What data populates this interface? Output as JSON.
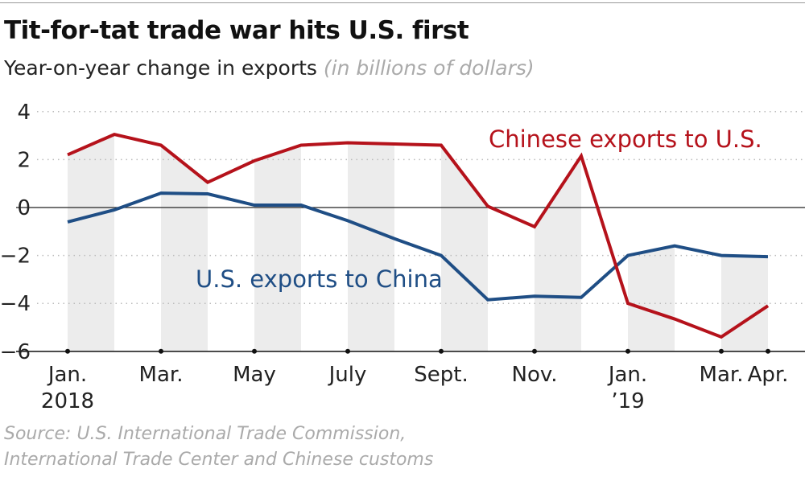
{
  "header": {
    "title": "Tit-for-tat trade war hits U.S. first",
    "subtitle": "Year-on-year change in exports",
    "unit": "(in billions of dollars)"
  },
  "source": {
    "line1": "Source: U.S. International Trade Commission,",
    "line2": "International Trade Center and Chinese customs"
  },
  "chart_data": {
    "type": "line",
    "title": "Tit-for-tat trade war hits U.S. first",
    "ylabel": "",
    "ylim": [
      -6,
      4
    ],
    "yticks": [
      "4",
      "2",
      "0",
      "−2",
      "−4",
      "−6"
    ],
    "ytick_values": [
      4,
      2,
      0,
      -2,
      -4,
      -6
    ],
    "grid": true,
    "x": [
      "2018-01",
      "2018-02",
      "2018-03",
      "2018-04",
      "2018-05",
      "2018-06",
      "2018-07",
      "2018-08",
      "2018-09",
      "2018-10",
      "2018-11",
      "2018-12",
      "2019-01",
      "2019-02",
      "2019-03",
      "2019-04"
    ],
    "xtick_labels": [
      {
        "i": 0,
        "l1": "Jan.",
        "l2": "2018"
      },
      {
        "i": 2,
        "l1": "Mar.",
        "l2": ""
      },
      {
        "i": 4,
        "l1": "May",
        "l2": ""
      },
      {
        "i": 6,
        "l1": "July",
        "l2": ""
      },
      {
        "i": 8,
        "l1": "Sept.",
        "l2": ""
      },
      {
        "i": 10,
        "l1": "Nov.",
        "l2": ""
      },
      {
        "i": 12,
        "l1": "Jan.",
        "l2": "’19"
      },
      {
        "i": 14,
        "l1": "Mar.",
        "l2": ""
      },
      {
        "i": 15,
        "l1": "Apr.",
        "l2": ""
      }
    ],
    "series": [
      {
        "name": "Chinese exports to U.S.",
        "color": "#b5121b",
        "values": [
          2.2,
          3.05,
          2.6,
          1.05,
          1.95,
          2.6,
          2.7,
          2.65,
          2.6,
          0.05,
          -0.8,
          2.15,
          -4.0,
          -4.65,
          -5.4,
          -4.1
        ]
      },
      {
        "name": "U.S. exports to China",
        "color": "#1f4e85",
        "values": [
          -0.6,
          -0.1,
          0.6,
          0.57,
          0.1,
          0.1,
          -0.55,
          -1.3,
          -2.0,
          -3.85,
          -3.7,
          -3.75,
          -2.0,
          -1.6,
          -2.0,
          -2.05
        ]
      }
    ],
    "band_color": "#ececec"
  }
}
